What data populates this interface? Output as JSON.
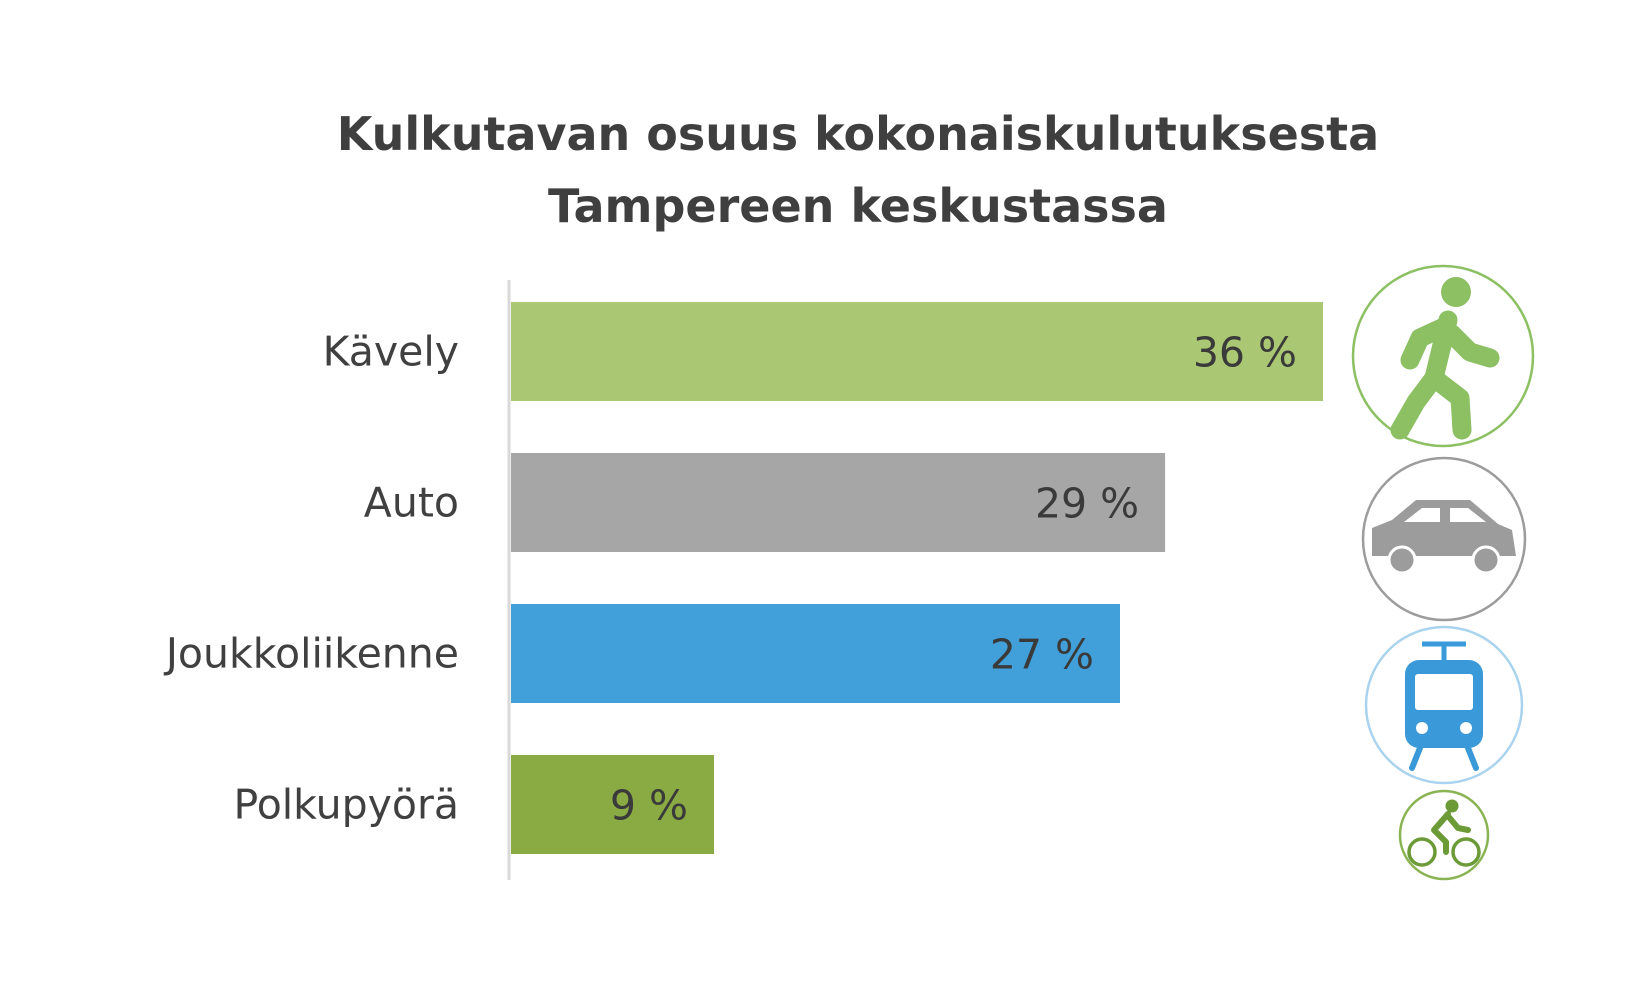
{
  "chart_data": {
    "type": "bar",
    "orientation": "horizontal",
    "title": [
      "Kulkutavan osuus kokonaiskulutuksesta",
      "Tampereen keskustassa"
    ],
    "categories": [
      "Kävely",
      "Auto",
      "Joukkoliikenne",
      "Polkupyörä"
    ],
    "values": [
      36,
      29,
      27,
      9
    ],
    "value_labels": [
      "36 %",
      "29 %",
      "27 %",
      "9 %"
    ],
    "colors": [
      "#aac874",
      "#a6a6a6",
      "#41a0da",
      "#8aab43"
    ],
    "icons": [
      "walking-person-icon",
      "car-icon",
      "tram-icon",
      "bicycle-icon"
    ],
    "icon_colors": [
      "#8cc063",
      "#9c9c9c",
      "#3a9ad9",
      "#6b9a36"
    ],
    "xlim": [
      0,
      36
    ],
    "grid": false,
    "legend": "none"
  }
}
